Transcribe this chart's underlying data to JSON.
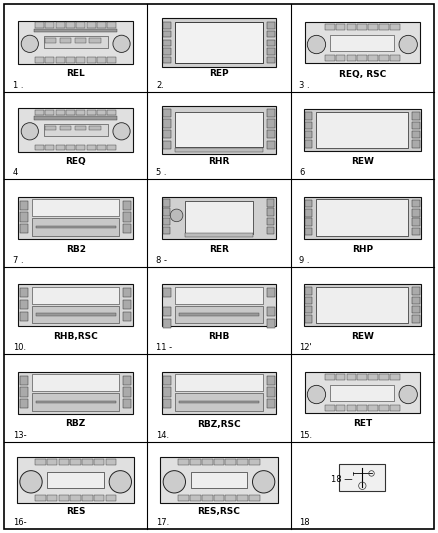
{
  "grid_cols": 3,
  "grid_rows": 6,
  "items": [
    {
      "num": "1 .",
      "label": "REL",
      "row": 0,
      "col": 0,
      "type": "REL"
    },
    {
      "num": "2.",
      "label": "REP",
      "row": 0,
      "col": 1,
      "type": "REP"
    },
    {
      "num": "3 .",
      "label": "REQ, RSC",
      "row": 0,
      "col": 2,
      "type": "REQ_RSC"
    },
    {
      "num": "4",
      "label": "REQ",
      "row": 1,
      "col": 0,
      "type": "REQ"
    },
    {
      "num": "5 .",
      "label": "RHR",
      "row": 1,
      "col": 1,
      "type": "RHR"
    },
    {
      "num": "6",
      "label": "REW",
      "row": 1,
      "col": 2,
      "type": "REW"
    },
    {
      "num": "7 .",
      "label": "RB2",
      "row": 2,
      "col": 0,
      "type": "RB2"
    },
    {
      "num": "8 -",
      "label": "RER",
      "row": 2,
      "col": 1,
      "type": "RER"
    },
    {
      "num": "9 .",
      "label": "RHP",
      "row": 2,
      "col": 2,
      "type": "RHP"
    },
    {
      "num": "10.",
      "label": "RHB,RSC",
      "row": 3,
      "col": 0,
      "type": "RHB_RSC"
    },
    {
      "num": "11 -",
      "label": "RHB",
      "row": 3,
      "col": 1,
      "type": "RHB"
    },
    {
      "num": "12'",
      "label": "REW",
      "row": 3,
      "col": 2,
      "type": "REW2"
    },
    {
      "num": "13-",
      "label": "RBZ",
      "row": 4,
      "col": 0,
      "type": "RBZ"
    },
    {
      "num": "14.",
      "label": "RBZ,RSC",
      "row": 4,
      "col": 1,
      "type": "RBZ_RSC"
    },
    {
      "num": "15.",
      "label": "RET",
      "row": 4,
      "col": 2,
      "type": "RET"
    },
    {
      "num": "16-",
      "label": "RES",
      "row": 5,
      "col": 0,
      "type": "RES"
    },
    {
      "num": "17.",
      "label": "RES,RSC",
      "row": 5,
      "col": 1,
      "type": "RES_RSC"
    },
    {
      "num": "18",
      "label": "",
      "row": 5,
      "col": 2,
      "type": "USB"
    }
  ],
  "bg_color": "#ffffff",
  "label_fontsize": 6.5,
  "num_fontsize": 6.0
}
